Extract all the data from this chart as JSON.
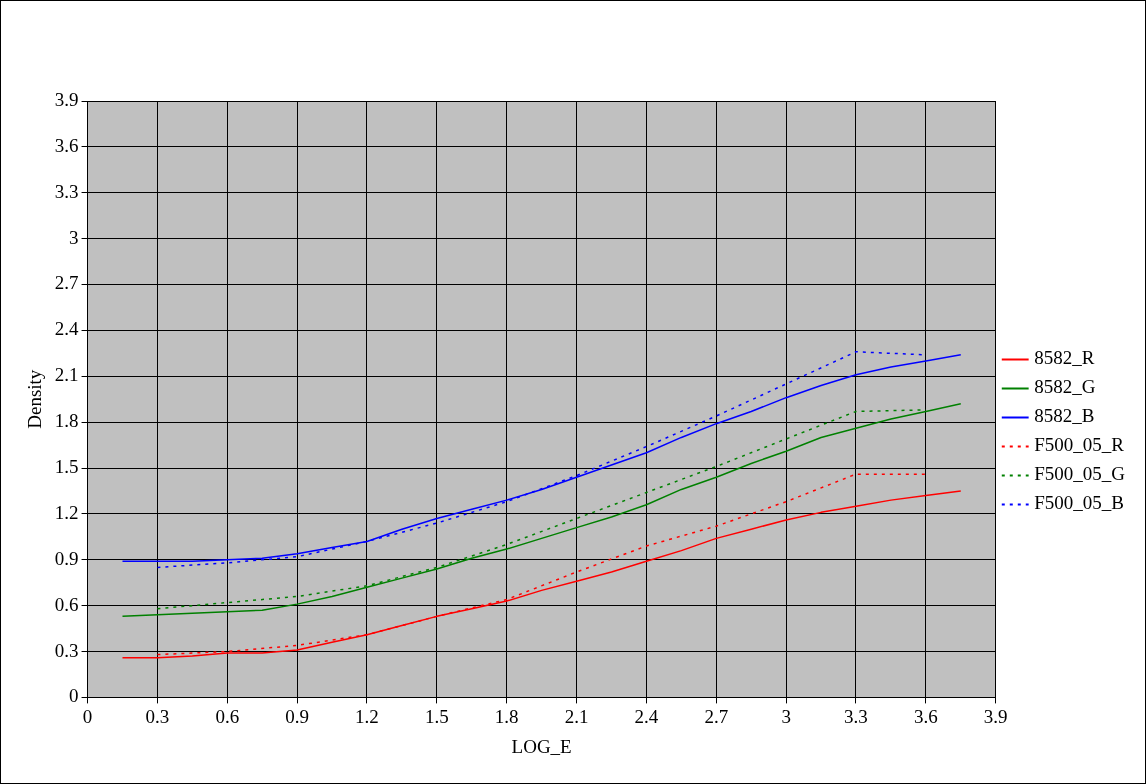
{
  "chart_data": {
    "type": "line",
    "xlabel": "LOG_E",
    "ylabel": "Density",
    "xlim": [
      0,
      3.9
    ],
    "ylim": [
      0,
      3.9
    ],
    "xticks": [
      0,
      0.3,
      0.6,
      0.9,
      1.2,
      1.5,
      1.8,
      2.1,
      2.4,
      2.7,
      3,
      3.3,
      3.6,
      3.9
    ],
    "yticks": [
      0,
      0.3,
      0.6,
      0.9,
      1.2,
      1.5,
      1.8,
      2.1,
      2.4,
      2.7,
      3,
      3.3,
      3.6,
      3.9
    ],
    "grid": true,
    "legend": "right",
    "marker": "none",
    "series": [
      {
        "name": "8582_R",
        "color": "#ff0000",
        "line_style": "solid",
        "x": [
          0.15,
          0.3,
          0.45,
          0.6,
          0.75,
          0.9,
          1.05,
          1.2,
          1.35,
          1.5,
          1.65,
          1.8,
          1.95,
          2.1,
          2.25,
          2.4,
          2.55,
          2.7,
          2.85,
          3.0,
          3.15,
          3.3,
          3.45,
          3.6,
          3.75
        ],
        "values": [
          0.26,
          0.26,
          0.27,
          0.29,
          0.29,
          0.31,
          0.36,
          0.41,
          0.47,
          0.53,
          0.58,
          0.63,
          0.7,
          0.76,
          0.82,
          0.89,
          0.96,
          1.04,
          1.1,
          1.16,
          1.21,
          1.25,
          1.29,
          1.32,
          1.35
        ]
      },
      {
        "name": "8582_G",
        "color": "#008000",
        "line_style": "solid",
        "x": [
          0.15,
          0.3,
          0.45,
          0.6,
          0.75,
          0.9,
          1.05,
          1.2,
          1.35,
          1.5,
          1.65,
          1.8,
          1.95,
          2.1,
          2.25,
          2.4,
          2.55,
          2.7,
          2.85,
          3.0,
          3.15,
          3.3,
          3.45,
          3.6,
          3.75
        ],
        "values": [
          0.53,
          0.54,
          0.55,
          0.56,
          0.57,
          0.61,
          0.66,
          0.72,
          0.78,
          0.84,
          0.91,
          0.97,
          1.04,
          1.11,
          1.18,
          1.26,
          1.36,
          1.44,
          1.53,
          1.61,
          1.7,
          1.76,
          1.82,
          1.87,
          1.92
        ]
      },
      {
        "name": "8582_B",
        "color": "#0000ff",
        "line_style": "solid",
        "x": [
          0.15,
          0.3,
          0.45,
          0.6,
          0.75,
          0.9,
          1.05,
          1.2,
          1.35,
          1.5,
          1.65,
          1.8,
          1.95,
          2.1,
          2.25,
          2.4,
          2.55,
          2.7,
          2.85,
          3.0,
          3.15,
          3.3,
          3.45,
          3.6,
          3.75
        ],
        "values": [
          0.89,
          0.89,
          0.89,
          0.9,
          0.91,
          0.94,
          0.98,
          1.02,
          1.1,
          1.17,
          1.23,
          1.29,
          1.36,
          1.44,
          1.52,
          1.6,
          1.7,
          1.79,
          1.87,
          1.96,
          2.04,
          2.11,
          2.16,
          2.2,
          2.24
        ]
      },
      {
        "name": "F500_05_R",
        "color": "#ff0000",
        "line_style": "dotted",
        "x": [
          0.3,
          0.6,
          0.9,
          1.2,
          1.5,
          1.8,
          2.1,
          2.4,
          2.7,
          3.0,
          3.3,
          3.6
        ],
        "values": [
          0.28,
          0.3,
          0.34,
          0.41,
          0.53,
          0.64,
          0.82,
          0.99,
          1.12,
          1.28,
          1.46,
          1.46
        ]
      },
      {
        "name": "F500_05_G",
        "color": "#008000",
        "line_style": "dotted",
        "x": [
          0.3,
          0.6,
          0.9,
          1.2,
          1.5,
          1.8,
          2.1,
          2.4,
          2.7,
          3.0,
          3.3,
          3.6
        ],
        "values": [
          0.58,
          0.62,
          0.66,
          0.73,
          0.85,
          1.0,
          1.17,
          1.34,
          1.51,
          1.69,
          1.87,
          1.88
        ]
      },
      {
        "name": "F500_05_B",
        "color": "#0000ff",
        "line_style": "dotted",
        "x": [
          0.3,
          0.6,
          0.9,
          1.2,
          1.5,
          1.8,
          2.1,
          2.4,
          2.7,
          3.0,
          3.3,
          3.6
        ],
        "values": [
          0.85,
          0.88,
          0.92,
          1.02,
          1.14,
          1.28,
          1.45,
          1.64,
          1.84,
          2.05,
          2.26,
          2.24
        ]
      }
    ]
  }
}
